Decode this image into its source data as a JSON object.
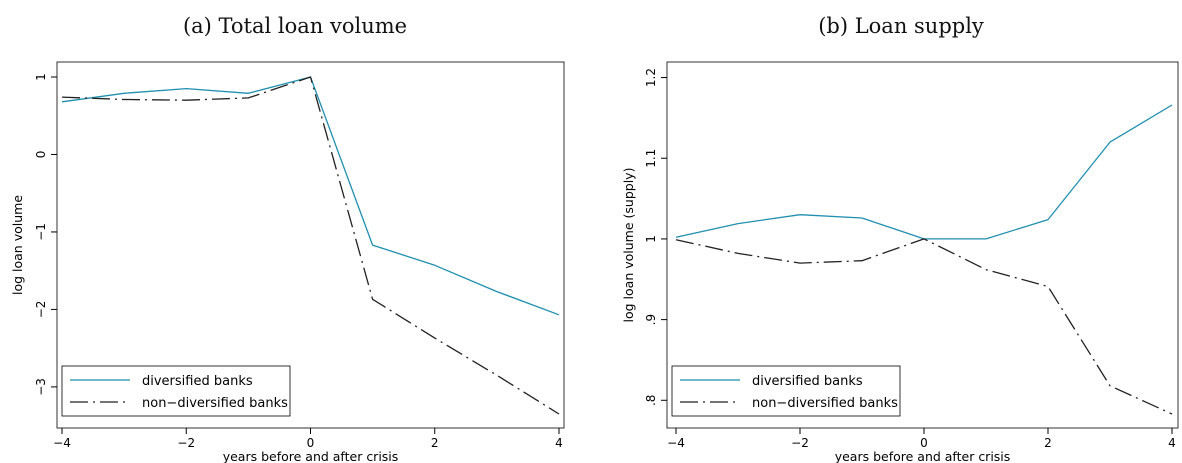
{
  "chart_data": [
    {
      "type": "line",
      "title": "(a) Total loan volume",
      "xlabel": "years before and after crisis",
      "ylabel": "log loan volume",
      "x": [
        -4,
        -3,
        -2,
        -1,
        0,
        1,
        2,
        3,
        4
      ],
      "xlim": [
        -4,
        4
      ],
      "ylim": [
        -3.35,
        1.0
      ],
      "xticks": [
        "-4",
        "-2",
        "0",
        "2",
        "4"
      ],
      "xtick_values": [
        -4,
        -2,
        0,
        2,
        4
      ],
      "yticks": [
        "1",
        "0",
        "-1",
        "-2",
        "-3"
      ],
      "ytick_values": [
        1,
        0,
        -1,
        -2,
        -3
      ],
      "grid": false,
      "legend_position": "bottom-left",
      "series": [
        {
          "name": "diversified banks",
          "color": "#1f8fb0",
          "style": "solid",
          "values": [
            0.68,
            0.79,
            0.85,
            0.79,
            1.0,
            -1.17,
            -1.43,
            -1.77,
            -2.07
          ]
        },
        {
          "name": "non−diversified banks",
          "color": "#222222",
          "style": "longdash-dot",
          "values": [
            0.74,
            0.71,
            0.7,
            0.73,
            1.0,
            -1.87,
            -2.37,
            -2.85,
            -3.35
          ]
        }
      ]
    },
    {
      "type": "line",
      "title": "(b) Loan supply",
      "xlabel": "years before and after crisis",
      "ylabel": "log loan volume (supply)",
      "x": [
        -4,
        -3,
        -2,
        -1,
        0,
        1,
        2,
        3,
        4
      ],
      "xlim": [
        -4,
        4
      ],
      "ylim": [
        0.783,
        1.166
      ],
      "xticks": [
        "-4",
        "-2",
        "0",
        "2",
        "4"
      ],
      "xtick_values": [
        -4,
        -2,
        0,
        2,
        4
      ],
      "yticks": [
        ".8",
        ".9",
        "1",
        "1.1",
        "1.2"
      ],
      "ytick_values": [
        0.8,
        0.9,
        1.0,
        1.1,
        1.2
      ],
      "grid": false,
      "legend_position": "bottom-left",
      "series": [
        {
          "name": "diversified banks",
          "color": "#1f8fb0",
          "style": "solid",
          "values": [
            1.002,
            1.019,
            1.03,
            1.026,
            1.0,
            1.0,
            1.024,
            1.12,
            1.166
          ]
        },
        {
          "name": "non−diversified banks",
          "color": "#222222",
          "style": "longdash-dot",
          "values": [
            0.999,
            0.982,
            0.97,
            0.973,
            1.0,
            0.962,
            0.941,
            0.818,
            0.783
          ]
        }
      ]
    }
  ]
}
